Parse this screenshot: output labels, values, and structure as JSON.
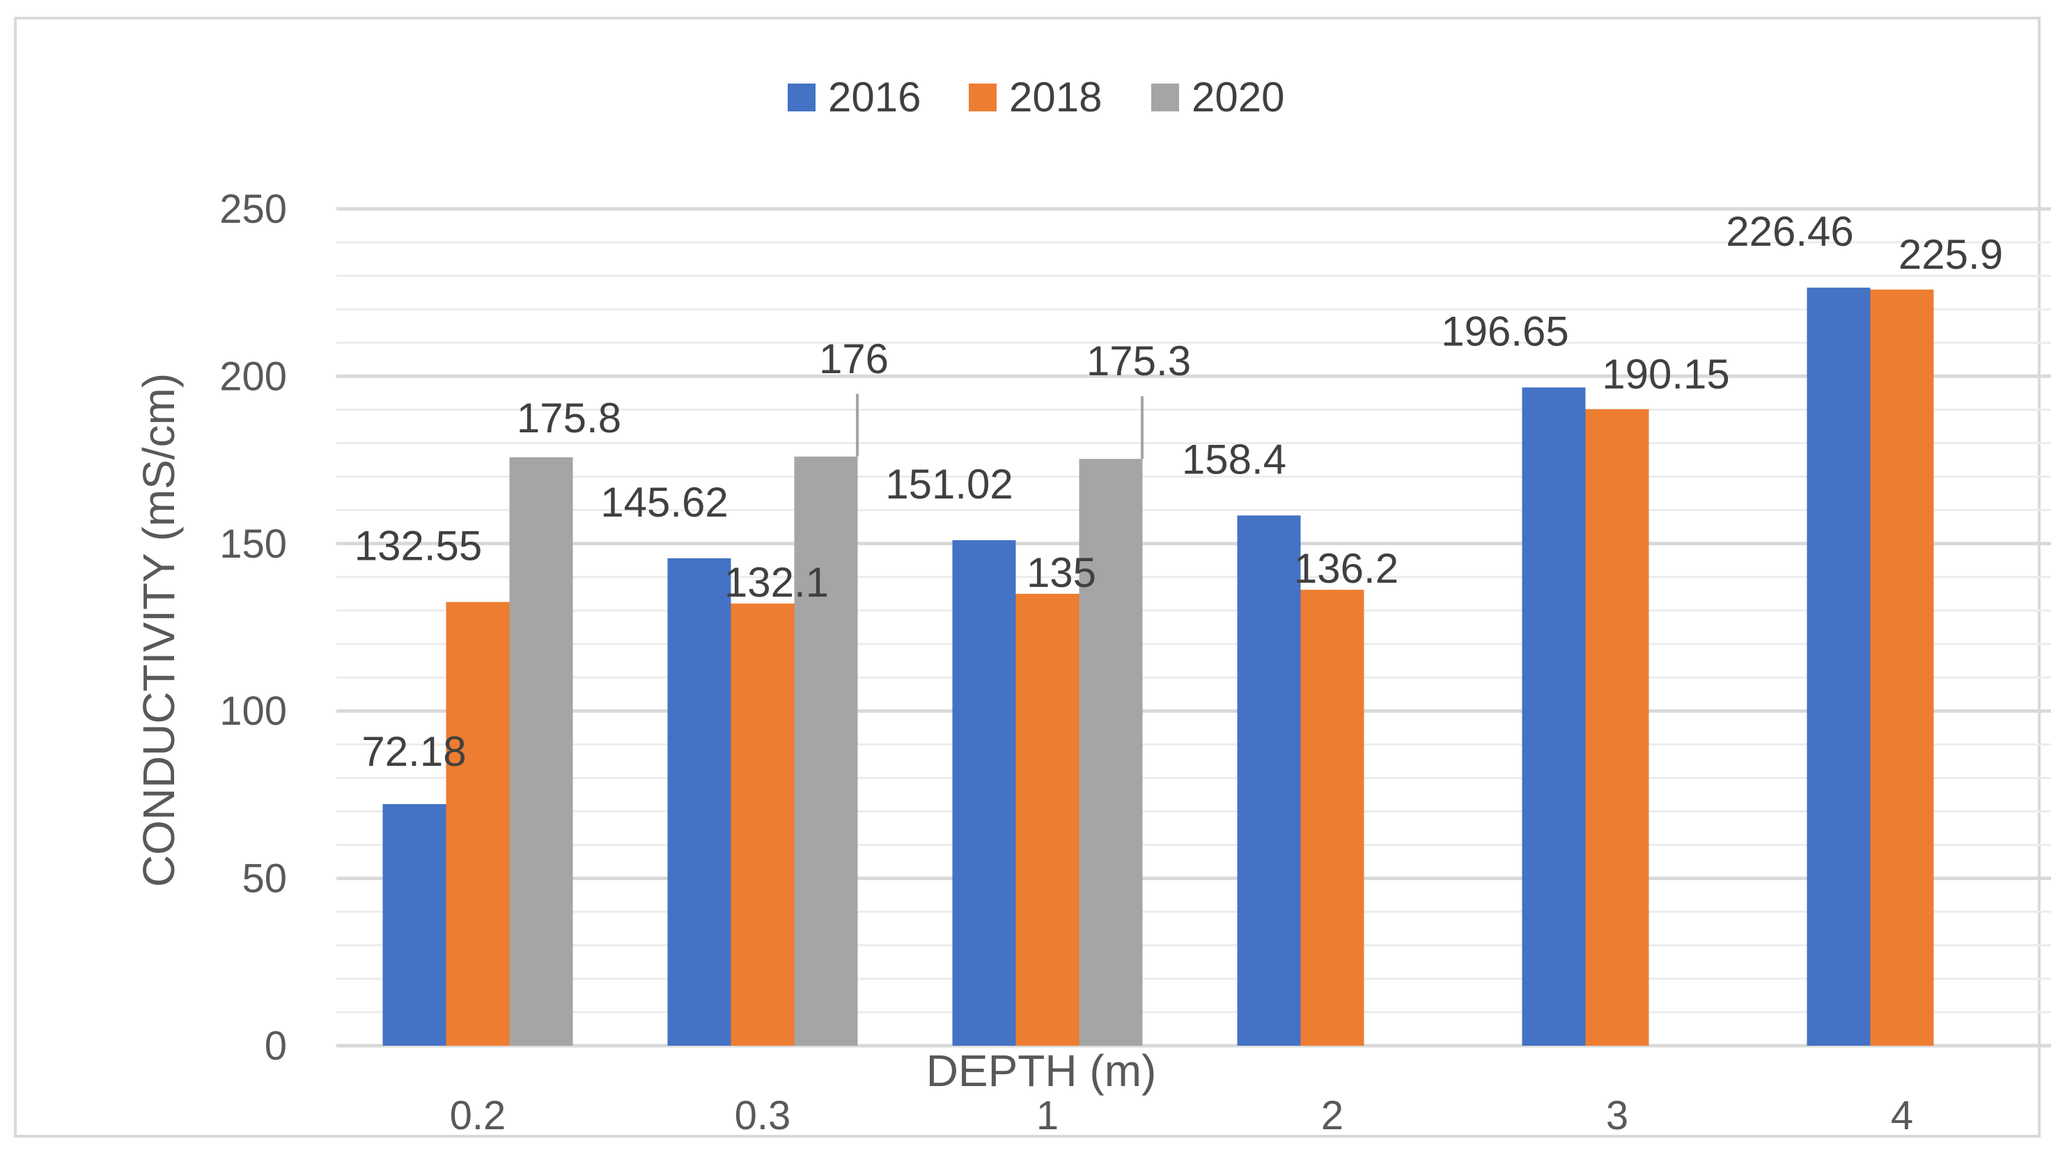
{
  "chart_data": {
    "type": "bar",
    "title": "",
    "xlabel": "DEPTH (m)",
    "ylabel": "CONDUCTIVITY (mS/cm)",
    "categories": [
      "0.2",
      "0.3",
      "1",
      "2",
      "3",
      "4"
    ],
    "ylim": [
      0,
      250
    ],
    "yticks": [
      0,
      50,
      100,
      150,
      200,
      250
    ],
    "grid": true,
    "legend_position": "top-center",
    "series": [
      {
        "name": "2016",
        "color": "#4472C4",
        "values": [
          72.18,
          145.62,
          151.02,
          158.4,
          196.65,
          226.46
        ],
        "labels": [
          "72.18",
          "145.62",
          "151.02",
          "158.4",
          "196.65",
          "226.46"
        ]
      },
      {
        "name": "2018",
        "color": "#ED7D31",
        "values": [
          132.55,
          132.1,
          135,
          136.2,
          190.15,
          225.9
        ],
        "labels": [
          "132.55",
          "132.1",
          "135",
          "136.2",
          "190.15",
          "225.9"
        ]
      },
      {
        "name": "2020",
        "color": "#A5A5A5",
        "values": [
          175.8,
          176,
          175.3,
          null,
          null,
          null
        ],
        "labels": [
          "175.8",
          "176",
          "175.3",
          null,
          null,
          null
        ]
      }
    ]
  }
}
